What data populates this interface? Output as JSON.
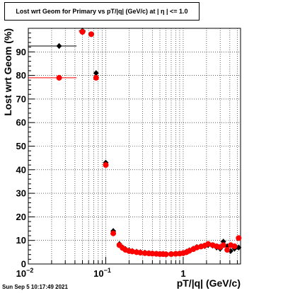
{
  "title": "Lost wrt Geom for Primary vs pT/|q| (GeV/c) at |  η  | <= 1.0",
  "footer": "Sun Sep  5 10:17:49 2021",
  "colors": {
    "series_black": "#000000",
    "series_red": "#ff0000",
    "grid": "#000000",
    "background": "#ffffff"
  },
  "chart_data": {
    "type": "scatter",
    "title": "Lost wrt Geom for Primary vs pT/|q| (GeV/c) at |  η  | <= 1.0",
    "xlabel": "pT/|q| (GeV/c)",
    "ylabel": "Lost wrt Geom (%)",
    "xscale": "log",
    "xlim": [
      0.01,
      5.5
    ],
    "ylim": [
      0,
      100
    ],
    "grid": true,
    "x_ticks": [
      {
        "value": 0.01,
        "label": "10",
        "exp": "−2"
      },
      {
        "value": 0.1,
        "label": "10",
        "exp": "−1"
      },
      {
        "value": 1,
        "label": "1",
        "exp": ""
      }
    ],
    "y_ticks": [
      0,
      10,
      20,
      30,
      40,
      50,
      60,
      70,
      80,
      90
    ],
    "series": [
      {
        "color": "#000000",
        "points": [
          {
            "x": 0.025,
            "y": 92.5,
            "xlo": 0.01,
            "xhi": 0.042
          },
          {
            "x": 0.05,
            "y": 99.0,
            "xlo": 0.045,
            "xhi": 0.055
          },
          {
            "x": 0.075,
            "y": 81.0,
            "xlo": 0.072,
            "xhi": 0.078
          },
          {
            "x": 0.1,
            "y": 43.0,
            "xlo": 0.095,
            "xhi": 0.105
          },
          {
            "x": 0.125,
            "y": 14.0,
            "xlo": 0.122,
            "xhi": 0.128
          },
          {
            "x": 0.15,
            "y": 8.5
          },
          {
            "x": 0.165,
            "y": 7.0
          },
          {
            "x": 0.18,
            "y": 6.3
          },
          {
            "x": 0.2,
            "y": 5.8
          },
          {
            "x": 0.22,
            "y": 5.5
          },
          {
            "x": 0.25,
            "y": 5.2
          },
          {
            "x": 0.28,
            "y": 5.0
          },
          {
            "x": 0.32,
            "y": 4.8
          },
          {
            "x": 0.36,
            "y": 4.6
          },
          {
            "x": 0.4,
            "y": 4.5
          },
          {
            "x": 0.45,
            "y": 4.4
          },
          {
            "x": 0.5,
            "y": 4.3
          },
          {
            "x": 0.55,
            "y": 4.3
          },
          {
            "x": 0.6,
            "y": 4.2
          },
          {
            "x": 0.7,
            "y": 4.3
          },
          {
            "x": 0.8,
            "y": 4.4
          },
          {
            "x": 0.9,
            "y": 4.5
          },
          {
            "x": 1.0,
            "y": 4.7
          },
          {
            "x": 1.1,
            "y": 5.2
          },
          {
            "x": 1.2,
            "y": 5.8
          },
          {
            "x": 1.35,
            "y": 6.5
          },
          {
            "x": 1.5,
            "y": 7.2
          },
          {
            "x": 1.7,
            "y": 7.5
          },
          {
            "x": 1.9,
            "y": 7.6
          },
          {
            "x": 2.1,
            "y": 8.0
          },
          {
            "x": 2.4,
            "y": 7.8
          },
          {
            "x": 2.7,
            "y": 7.0
          },
          {
            "x": 3.0,
            "y": 6.5
          },
          {
            "x": 3.3,
            "y": 9.5
          },
          {
            "x": 3.7,
            "y": 7.5
          },
          {
            "x": 4.1,
            "y": 5.5
          },
          {
            "x": 4.6,
            "y": 6.5
          },
          {
            "x": 5.2,
            "y": 7.0
          }
        ]
      },
      {
        "color": "#ff0000",
        "points": [
          {
            "x": 0.025,
            "y": 79.0,
            "xlo": 0.01,
            "xhi": 0.042
          },
          {
            "x": 0.05,
            "y": 98.5,
            "xlo": 0.045,
            "xhi": 0.055
          },
          {
            "x": 0.065,
            "y": 97.5
          },
          {
            "x": 0.075,
            "y": 79.0,
            "xlo": 0.072,
            "xhi": 0.078
          },
          {
            "x": 0.1,
            "y": 42.0,
            "xlo": 0.095,
            "xhi": 0.105
          },
          {
            "x": 0.125,
            "y": 13.0,
            "xlo": 0.122,
            "xhi": 0.128
          },
          {
            "x": 0.15,
            "y": 8.0
          },
          {
            "x": 0.165,
            "y": 6.8
          },
          {
            "x": 0.18,
            "y": 6.0
          },
          {
            "x": 0.2,
            "y": 5.5
          },
          {
            "x": 0.22,
            "y": 5.3
          },
          {
            "x": 0.25,
            "y": 5.0
          },
          {
            "x": 0.28,
            "y": 4.8
          },
          {
            "x": 0.32,
            "y": 4.6
          },
          {
            "x": 0.36,
            "y": 4.5
          },
          {
            "x": 0.4,
            "y": 4.4
          },
          {
            "x": 0.45,
            "y": 4.3
          },
          {
            "x": 0.5,
            "y": 4.2
          },
          {
            "x": 0.55,
            "y": 4.2
          },
          {
            "x": 0.6,
            "y": 4.1
          },
          {
            "x": 0.7,
            "y": 4.2
          },
          {
            "x": 0.8,
            "y": 4.3
          },
          {
            "x": 0.9,
            "y": 4.4
          },
          {
            "x": 1.0,
            "y": 4.6
          },
          {
            "x": 1.1,
            "y": 5.0
          },
          {
            "x": 1.2,
            "y": 5.6
          },
          {
            "x": 1.35,
            "y": 6.3
          },
          {
            "x": 1.5,
            "y": 7.0
          },
          {
            "x": 1.7,
            "y": 7.4
          },
          {
            "x": 1.9,
            "y": 7.8
          },
          {
            "x": 2.1,
            "y": 8.5
          },
          {
            "x": 2.4,
            "y": 8.0
          },
          {
            "x": 2.7,
            "y": 7.5
          },
          {
            "x": 3.0,
            "y": 7.2
          },
          {
            "x": 3.3,
            "y": 8.0
          },
          {
            "x": 3.7,
            "y": 6.0
          },
          {
            "x": 4.1,
            "y": 8.0
          },
          {
            "x": 4.6,
            "y": 7.5
          },
          {
            "x": 5.2,
            "y": 11.0
          }
        ]
      }
    ]
  }
}
